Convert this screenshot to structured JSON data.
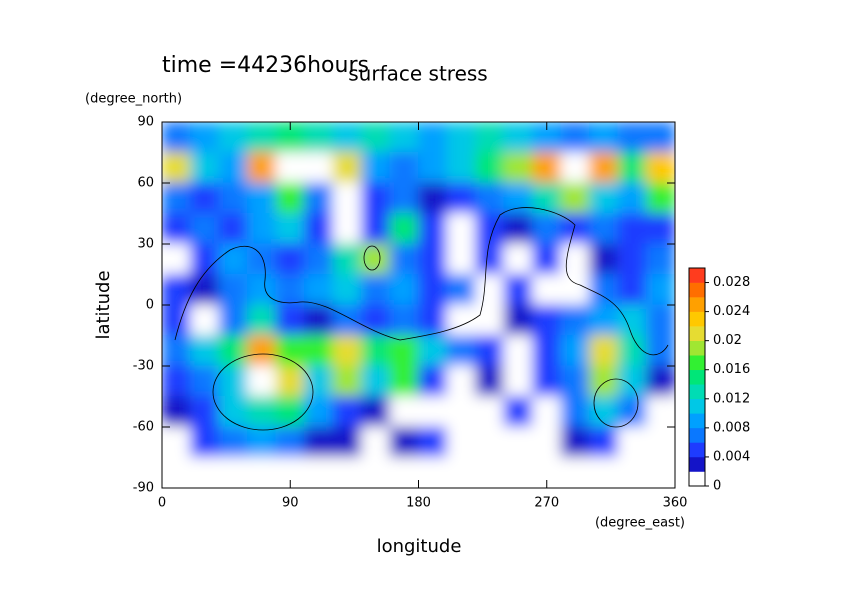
{
  "chart_data": {
    "type": "contour",
    "title": "surface stress",
    "subtitle": "time =44236hours",
    "xlabel": "longitude",
    "xunit": "(degree_east)",
    "ylabel": "latitude",
    "yunit": "(degree_north)",
    "x": [
      10,
      30,
      50,
      70,
      90,
      110,
      130,
      150,
      170,
      190,
      210,
      230,
      250,
      270,
      290,
      310,
      330,
      350
    ],
    "y": [
      82.5,
      67.5,
      52.5,
      37.5,
      22.5,
      7.5,
      -7.5,
      -22.5,
      -37.5,
      -52.5,
      -67.5,
      -82.5
    ],
    "values": [
      [
        0.006,
        0.008,
        0.01,
        0.012,
        0.014,
        0.012,
        0.01,
        0.012,
        0.01,
        0.008,
        0.01,
        0.012,
        0.01,
        0.008,
        0.006,
        0.008,
        0.006,
        0.006
      ],
      [
        0.02,
        0.01,
        0.008,
        0.024,
        0,
        0,
        0.02,
        0.008,
        0.006,
        0.008,
        0.01,
        0.014,
        0.018,
        0.024,
        0,
        0.024,
        0.014,
        0.022
      ],
      [
        0.006,
        0.004,
        0.006,
        0.008,
        0.016,
        0.006,
        0,
        0.004,
        0.006,
        0.002,
        0.004,
        0.006,
        0.008,
        0.012,
        0.018,
        0.01,
        0.008,
        0.016
      ],
      [
        0.004,
        0.006,
        0.004,
        0.008,
        0.01,
        0.004,
        0,
        0.004,
        0.014,
        0.004,
        0,
        0.004,
        0.002,
        0.006,
        0.004,
        0.006,
        0.004,
        0.004
      ],
      [
        0,
        0.004,
        0.008,
        0.006,
        0.004,
        0.006,
        0.012,
        0.018,
        0.006,
        0.004,
        0,
        0.004,
        0,
        0.004,
        0,
        0.002,
        0.004,
        0.006
      ],
      [
        0.004,
        0.002,
        0.006,
        0.008,
        0.006,
        0.008,
        0.01,
        0.006,
        0.008,
        0.004,
        0.006,
        0,
        0.004,
        0,
        0,
        0.006,
        0.004,
        0.008
      ],
      [
        0.004,
        0,
        0.006,
        0.012,
        0.004,
        0.002,
        0.006,
        0.004,
        0.006,
        0.004,
        0,
        0,
        0.002,
        0.004,
        0.006,
        0.008,
        0.01,
        0.006
      ],
      [
        0.006,
        0.01,
        0.014,
        0.024,
        0.016,
        0.016,
        0.02,
        0.014,
        0.016,
        0.01,
        0.006,
        0.004,
        0,
        0.004,
        0.008,
        0.02,
        0.012,
        0.006
      ],
      [
        0.004,
        0.006,
        0.01,
        0,
        0.02,
        0.01,
        0.018,
        0.01,
        0.016,
        0.004,
        0,
        0.002,
        0,
        0.004,
        0.006,
        0.018,
        0.01,
        0.002
      ],
      [
        0.002,
        0.004,
        0.01,
        0.012,
        0.014,
        0.008,
        0.004,
        0.002,
        0,
        0,
        0,
        0,
        0.004,
        0,
        0.006,
        0.01,
        0.006,
        0
      ],
      [
        0,
        0.004,
        0.006,
        0.008,
        0.006,
        0.002,
        0.002,
        0,
        0.002,
        0.004,
        0,
        0,
        0,
        0,
        0.002,
        0.004,
        0,
        0
      ],
      [
        0,
        0,
        0,
        0,
        0,
        0,
        0,
        0,
        0,
        0,
        0,
        0,
        0,
        0,
        0,
        0,
        0,
        0
      ]
    ],
    "xlim": [
      0,
      360
    ],
    "ylim": [
      -90,
      90
    ],
    "xticks": [
      0,
      90,
      180,
      270,
      360
    ],
    "yticks": [
      90,
      60,
      30,
      0,
      -30,
      -60,
      -90
    ],
    "colorbar": {
      "lim": [
        0,
        0.03
      ],
      "ticks": [
        0,
        0.004,
        0.008,
        0.012,
        0.016,
        0.02,
        0.024,
        0.028
      ],
      "colors": [
        "#ffffff",
        "#1414c8",
        "#1e3cff",
        "#0a78ff",
        "#00a0ff",
        "#00c8e6",
        "#00dcb4",
        "#00e678",
        "#32f032",
        "#a0e632",
        "#e6dc32",
        "#ffc800",
        "#ffa000",
        "#ff6e00",
        "#ff3c1e"
      ]
    }
  }
}
